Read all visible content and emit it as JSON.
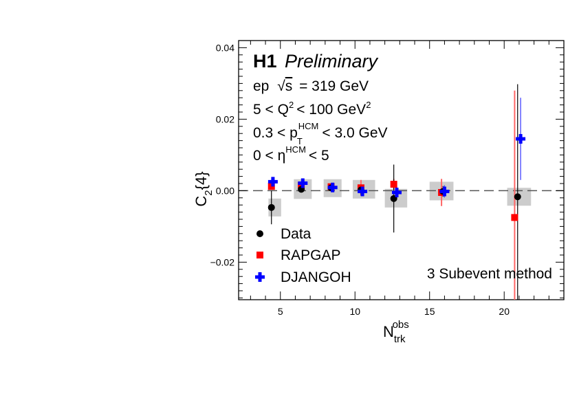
{
  "chart_data": {
    "type": "scatter",
    "title_bold": "H1",
    "title_italic": "Preliminary",
    "annotations": {
      "line1": "ep",
      "sqrt_sym": "√",
      "sqrt_s": "s",
      "line1_rest": "= 319 GeV",
      "line2a": "5 < Q",
      "line2_sup": "2",
      "line2b": "< 100 GeV",
      "line2_sup2": "2",
      "line3a": "0.3 < p",
      "line3_sub": "T",
      "line3_sup": "HCM",
      "line3b": "< 3.0 GeV",
      "line4a": "0 < η",
      "line4_sup": "HCM",
      "line4b": "< 5",
      "method": "3 Subevent method"
    },
    "xlabel_main": "N",
    "xlabel_sub": "trk",
    "xlabel_sup": "obs",
    "ylabel_main": "C",
    "ylabel_sub": "2",
    "ylabel_rest": "{4}",
    "xlim": [
      2.2,
      24.0
    ],
    "ylim": [
      -0.0305,
      0.042
    ],
    "x_ticks": [
      5,
      10,
      15,
      20
    ],
    "x_tick_labels": [
      "5",
      "10",
      "15",
      "20"
    ],
    "y_ticks": [
      -0.02,
      0.0,
      0.02,
      0.04
    ],
    "y_tick_labels": [
      "−0.02",
      "0.00",
      "0.02",
      "0.04"
    ],
    "reference_line": 0.0,
    "series": [
      {
        "name": "Data",
        "marker": "circle",
        "color": "#000000",
        "points": [
          {
            "x": 4.4,
            "y": -0.0047,
            "err": 0.0047,
            "sys_lo": 4.2,
            "sys_hi": 5.05,
            "sys_y0": -0.0072,
            "sys_y1": -0.0022
          },
          {
            "x": 6.4,
            "y": 0.0004,
            "err": 0.0008,
            "sys_lo": 5.9,
            "sys_hi": 7.1,
            "sys_y0": -0.0023,
            "sys_y1": 0.0032
          },
          {
            "x": 8.4,
            "y": 0.0008,
            "err": 0.0009,
            "sys_lo": 7.9,
            "sys_hi": 9.1,
            "sys_y0": -0.0018,
            "sys_y1": 0.0032
          },
          {
            "x": 10.4,
            "y": 0.0002,
            "err": 0.0015,
            "sys_lo": 9.85,
            "sys_hi": 11.35,
            "sys_y0": -0.0022,
            "sys_y1": 0.003
          },
          {
            "x": 12.6,
            "y": -0.0022,
            "err": 0.0095,
            "sys_lo": 12.0,
            "sys_hi": 13.5,
            "sys_y0": -0.0047,
            "sys_y1": 0.0005
          },
          {
            "x": 15.9,
            "y": -0.0002,
            "err": 0.0015,
            "sys_lo": 15.0,
            "sys_hi": 16.6,
            "sys_y0": -0.0027,
            "sys_y1": 0.0025
          },
          {
            "x": 20.9,
            "y": -0.0017,
            "err": 0.0315,
            "sys_lo": 20.2,
            "sys_hi": 21.8,
            "sys_y0": -0.0042,
            "sys_y1": 0.0008
          }
        ]
      },
      {
        "name": "RAPGAP",
        "marker": "square",
        "color": "#ff0000",
        "points": [
          {
            "x": 4.4,
            "y": 0.0012,
            "err": 0.0007
          },
          {
            "x": 6.4,
            "y": 0.0015,
            "err": 0.0007
          },
          {
            "x": 8.4,
            "y": 0.0011,
            "err": 0.0008
          },
          {
            "x": 10.4,
            "y": 0.0008,
            "err": 0.0022
          },
          {
            "x": 12.6,
            "y": 0.0018,
            "err": 0.0015
          },
          {
            "x": 15.8,
            "y": -0.0005,
            "err": 0.0038
          },
          {
            "x": 20.7,
            "y": -0.0075,
            "err": 0.0355
          }
        ]
      },
      {
        "name": "DJANGOH",
        "marker": "cross",
        "color": "#0000ff",
        "points": [
          {
            "x": 4.5,
            "y": 0.0025,
            "err": 0.0008
          },
          {
            "x": 6.5,
            "y": 0.0021,
            "err": 0.0007
          },
          {
            "x": 8.5,
            "y": 0.0009,
            "err": 0.0009
          },
          {
            "x": 10.5,
            "y": -0.0002,
            "err": 0.0013
          },
          {
            "x": 12.8,
            "y": -0.0005,
            "err": 0.0018
          },
          {
            "x": 16.0,
            "y": -0.0002,
            "err": 0.0017
          },
          {
            "x": 21.1,
            "y": 0.0145,
            "err": 0.0115
          }
        ]
      }
    ],
    "legend": {
      "placement": "bottom-left",
      "entries": [
        "Data",
        "RAPGAP",
        "DJANGOH"
      ]
    }
  }
}
